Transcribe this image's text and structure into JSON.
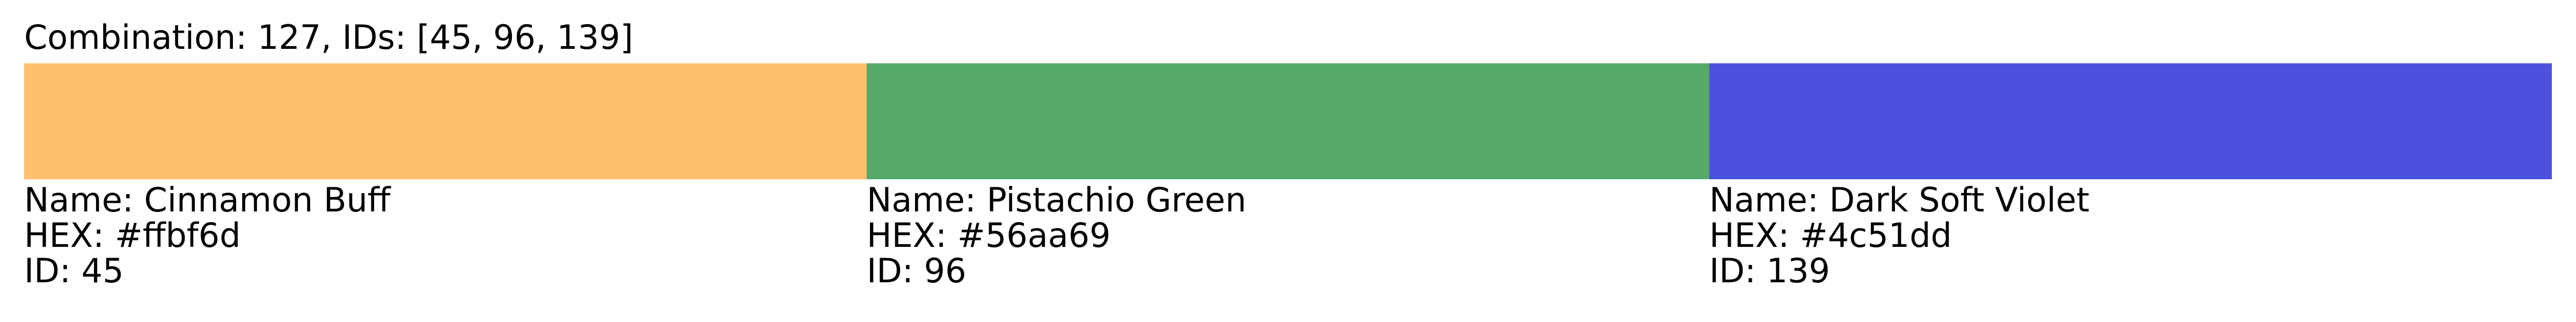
{
  "header": {
    "title": "Combination: 127, IDs: [45, 96, 139]"
  },
  "swatches": [
    {
      "name_line": "Name: Cinnamon Buff",
      "hex_line": "HEX: #ffbf6d",
      "id_line": "ID: 45",
      "color": "#ffbf6d"
    },
    {
      "name_line": "Name: Pistachio Green",
      "hex_line": "HEX: #56aa69",
      "id_line": "ID: 96",
      "color": "#56aa69"
    },
    {
      "name_line": "Name: Dark Soft Violet",
      "hex_line": "HEX: #4c51dd",
      "id_line": "ID: 139",
      "color": "#4c51dd"
    }
  ]
}
